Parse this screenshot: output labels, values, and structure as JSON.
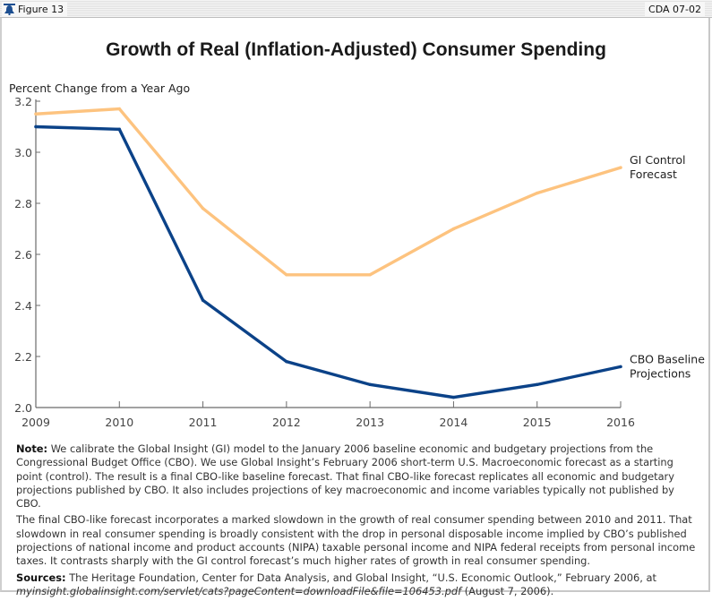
{
  "header": {
    "figure_label": "Figure 13",
    "code_label": "CDA 07-02",
    "logo_icon": "liberty-bell-icon"
  },
  "chart_data": {
    "type": "line",
    "title": "Growth of Real (Inflation-Adjusted) Consumer Spending",
    "xlabel": "",
    "ylabel": "Percent Change from a Year Ago",
    "x": [
      2009,
      2010,
      2011,
      2012,
      2013,
      2014,
      2015,
      2016
    ],
    "x_tick_labels": [
      "2009",
      "2010",
      "2011",
      "2012",
      "2013",
      "2014",
      "2015",
      "2016"
    ],
    "y_ticks": [
      2.0,
      2.2,
      2.4,
      2.6,
      2.8,
      3.0,
      3.2
    ],
    "y_tick_labels": [
      "2.0",
      "2.2",
      "2.4",
      "2.6",
      "2.8",
      "3.0",
      "3.2"
    ],
    "ylim": [
      2.0,
      3.2
    ],
    "xlim": [
      2009,
      2016
    ],
    "grid": false,
    "legend": "inline-end-labels-right",
    "series": [
      {
        "name": "GI Control Forecast",
        "label_lines": [
          "GI Control",
          "Forecast"
        ],
        "color": "#fdc37f",
        "values": [
          3.15,
          3.17,
          2.78,
          2.52,
          2.52,
          2.7,
          2.84,
          2.94
        ]
      },
      {
        "name": "CBO Baseline Projections",
        "label_lines": [
          "CBO Baseline",
          "Projections"
        ],
        "color": "#0b4288",
        "values": [
          3.1,
          3.09,
          2.42,
          2.18,
          2.09,
          2.04,
          2.09,
          2.16
        ]
      }
    ]
  },
  "notes": {
    "note_label": "Note:",
    "note_text": " We calibrate the Global Insight (GI) model to the January 2006 baseline economic and budgetary projections from the Congressional Budget Office (CBO). We use Global Insight’s February 2006 short-term U.S. Macroeconomic forecast as a starting point (control). The result is a final CBO-like baseline forecast. That final CBO-like forecast replicates all economic and budgetary projections published by CBO. It also includes projections of key macroeconomic and income variables typically not published by CBO.",
    "paragraph2": "The final CBO-like forecast incorporates a marked slowdown in the growth of real consumer spending between 2010 and 2011. That slowdown in real consumer spending is broadly consistent with the drop in personal disposable income implied by CBO’s published projections of national income and product accounts (NIPA) taxable personal income and NIPA federal receipts from personal income taxes. It contrasts sharply with the GI control forecast’s much higher rates of growth in real consumer spending.",
    "sources_label": "Sources:",
    "sources_text": " The Heritage Foundation, Center for Data Analysis, and Global Insight, “U.S. Economic Outlook,” February 2006, at ",
    "sources_url": "myinsight.globalinsight.com/servlet/cats?pageContent=downloadFile&file=106453.pdf",
    "sources_date": " (August 7, 2006)."
  }
}
